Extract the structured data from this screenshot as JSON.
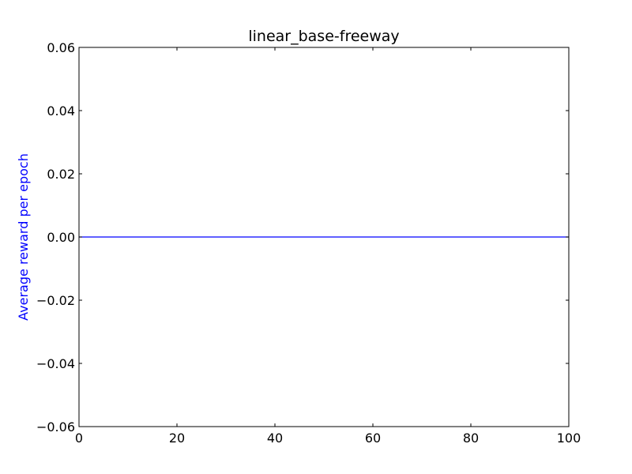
{
  "chart_data": {
    "type": "line",
    "title": "linear_base-freeway",
    "xlabel": "",
    "ylabel": "Average reward per epoch",
    "xlim": [
      0,
      100
    ],
    "ylim": [
      -0.06,
      0.06
    ],
    "x_ticks": [
      0,
      20,
      40,
      60,
      80,
      100
    ],
    "y_ticks": [
      0.06,
      0.04,
      0.02,
      0.0,
      -0.02,
      -0.04,
      -0.06
    ],
    "x_tick_labels": [
      "0",
      "20",
      "40",
      "60",
      "80",
      "100"
    ],
    "y_tick_labels": [
      "0.06",
      "0.04",
      "0.02",
      "0.00",
      "−0.02",
      "−0.04",
      "−0.06"
    ],
    "grid": false,
    "series": [
      {
        "color": "#0000ff",
        "x": [
          0,
          100
        ],
        "y": [
          0.0,
          0.0
        ]
      }
    ],
    "colors": {
      "ylabel": "#0000ff",
      "axes": "#000000"
    }
  }
}
